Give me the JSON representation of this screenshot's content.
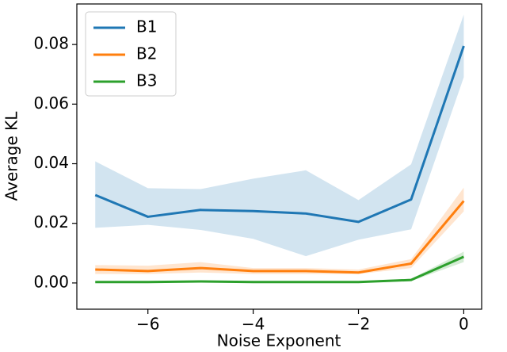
{
  "chart_data": {
    "type": "line",
    "x_label": "Noise Exponent",
    "y_label": "Average KL",
    "x": [
      -7,
      -6,
      -5,
      -4,
      -3,
      -2,
      -1,
      0
    ],
    "series": [
      {
        "name": "B1",
        "color": "#1f77b4",
        "values": [
          0.0295,
          0.0222,
          0.0245,
          0.0241,
          0.0233,
          0.0205,
          0.028,
          0.0795
        ],
        "lower": [
          0.0185,
          0.0195,
          0.0178,
          0.0148,
          0.009,
          0.0145,
          0.018,
          0.069
        ],
        "upper": [
          0.0408,
          0.0318,
          0.0315,
          0.035,
          0.0378,
          0.0278,
          0.0398,
          0.09
        ]
      },
      {
        "name": "B2",
        "color": "#ff7f0e",
        "values": [
          0.0045,
          0.004,
          0.005,
          0.004,
          0.004,
          0.0035,
          0.0065,
          0.0275
        ],
        "lower": [
          0.003,
          0.003,
          0.0035,
          0.003,
          0.003,
          0.003,
          0.005,
          0.024
        ],
        "upper": [
          0.006,
          0.0058,
          0.007,
          0.005,
          0.005,
          0.0045,
          0.008,
          0.032
        ]
      },
      {
        "name": "B3",
        "color": "#2ca02c",
        "values": [
          0.0003,
          0.0003,
          0.0005,
          0.0003,
          0.0003,
          0.0003,
          0.001,
          0.0088
        ],
        "lower": [
          0.0001,
          0.0001,
          0.0002,
          0.0001,
          0.0001,
          0.0001,
          0.0006,
          0.007
        ],
        "upper": [
          0.0005,
          0.0005,
          0.0008,
          0.0005,
          0.0005,
          0.0005,
          0.0014,
          0.0105
        ]
      }
    ],
    "xlim": [
      -7.35,
      0.34
    ],
    "ylim": [
      -0.0088,
      0.0936
    ],
    "xticks": [
      {
        "value": -6,
        "label": "−6"
      },
      {
        "value": -4,
        "label": "−4"
      },
      {
        "value": -2,
        "label": "−2"
      },
      {
        "value": 0,
        "label": "0"
      }
    ],
    "yticks": [
      {
        "value": 0,
        "label": "0.00"
      },
      0.02,
      0.04,
      0.06,
      0.08
    ],
    "legend": "upper left",
    "band_opacity": 0.2
  }
}
